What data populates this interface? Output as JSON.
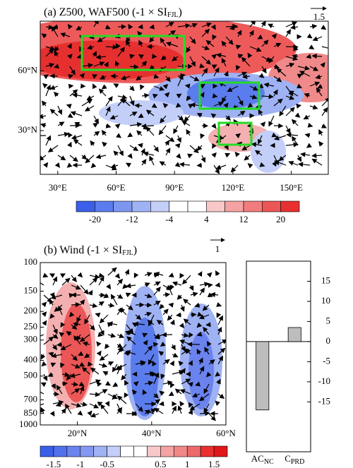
{
  "chart_data": [
    {
      "type": "map",
      "title": [
        "(a) Z500, WAF500 (-1 × SI",
        "FJL",
        ")"
      ],
      "reference_vector": "1.5",
      "xlim": [
        21,
        169
      ],
      "xticks": [
        {
          "value": 30,
          "label": "30°E"
        },
        {
          "value": 60,
          "label": "60°E"
        },
        {
          "value": 90,
          "label": "90°E"
        },
        {
          "value": 120,
          "label": "120°E"
        },
        {
          "value": 150,
          "label": "150°E"
        }
      ],
      "ylim": [
        8,
        85
      ],
      "yticks": [
        {
          "value": 30,
          "label": "30°N"
        },
        {
          "value": 60,
          "label": "60°N"
        }
      ],
      "colorbar": {
        "levels": [
          -20,
          -16,
          -12,
          -8,
          -4,
          0,
          4,
          8,
          12,
          16,
          20
        ],
        "ticks": [
          -20,
          -12,
          -4,
          4,
          12,
          20
        ],
        "colors": [
          "#3a5fe8",
          "#5b7cec",
          "#7d97f0",
          "#9fb2f4",
          "#c3cff8",
          "#ffffff",
          "#ffffff",
          "#f8c8c8",
          "#f4a2a2",
          "#f07c7c",
          "#ec5656",
          "#e83030"
        ]
      }
    },
    {
      "type": "profile",
      "title": [
        "(b) Wind (-1 × SI",
        "FJL",
        ")"
      ],
      "reference_vector": "1",
      "xlim": [
        10,
        60
      ],
      "xticks": [
        {
          "value": 20,
          "label": "20°N"
        },
        {
          "value": 40,
          "label": "40°N"
        },
        {
          "value": 60,
          "label": "60°N"
        }
      ],
      "ylim": [
        100,
        1000
      ],
      "log": true,
      "yticks": [
        100,
        150,
        200,
        250,
        300,
        400,
        500,
        700,
        850,
        1000
      ],
      "colorbar": {
        "levels": [
          -1.5,
          -1.25,
          -1,
          -0.75,
          -0.5,
          -0.25,
          0,
          0.25,
          0.5,
          0.75,
          1,
          1.25,
          1.5
        ],
        "ticks": [
          -1.5,
          -1,
          -0.5,
          0.5,
          1,
          1.5
        ],
        "colors": [
          "#3a5fe8",
          "#5270eb",
          "#6b83ee",
          "#8498f1",
          "#9fb2f4",
          "#c3cff8",
          "#ffffff",
          "#ffffff",
          "#f8c8c8",
          "#f4a2a2",
          "#f08888",
          "#ec6a6a",
          "#e83030",
          "#e01818"
        ]
      }
    },
    {
      "type": "bar",
      "categories": [
        [
          "AC",
          "NC"
        ],
        [
          "C",
          "PRD"
        ]
      ],
      "values": [
        -17,
        3.5
      ],
      "color": "#bdbdbd",
      "ylim": [
        -27.4,
        20
      ],
      "yticks": [
        -15,
        -10,
        -5,
        0,
        5,
        10,
        15
      ]
    }
  ]
}
